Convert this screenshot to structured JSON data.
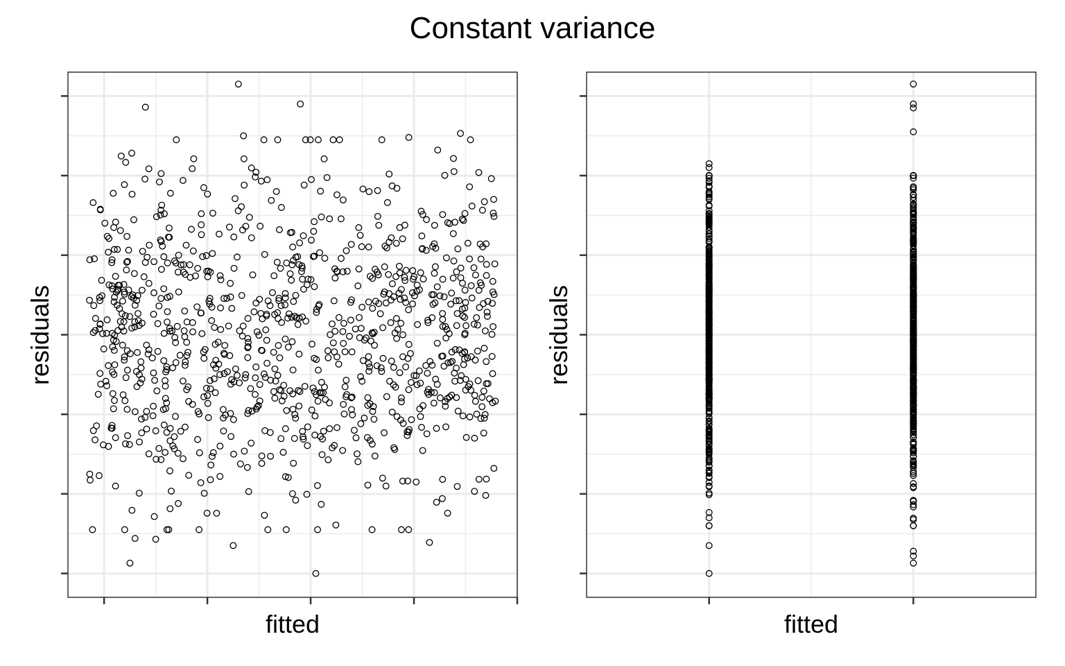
{
  "chart_data": {
    "title": "Constant variance",
    "colors": {
      "point_stroke": "#000000",
      "grid": "#EBEBEB",
      "panel_border": "#333333",
      "background": "#FFFFFF"
    },
    "panels": [
      {
        "type": "scatter",
        "xlabel": "fitted",
        "ylabel": "residuals",
        "tick_labels_shown": false,
        "grid": true,
        "seed": 20240611,
        "n_points": 1000,
        "x_distribution": {
          "kind": "uniform",
          "min": -0.15,
          "max": 3.8
        },
        "y_distribution": {
          "kind": "normal",
          "mean": 0,
          "sd": 1
        },
        "xlim": [
          -0.35,
          4.0
        ],
        "ylim": [
          -3.3,
          3.3
        ],
        "x_major_breaks": [
          0,
          1,
          2,
          3,
          4
        ],
        "y_major_breaks": [
          -3,
          -2,
          -1,
          0,
          1,
          2,
          3
        ],
        "y_extreme_points": [
          {
            "x": 1.3,
            "y": 3.15
          },
          {
            "x": 0.4,
            "y": 2.86
          },
          {
            "x": 1.9,
            "y": 2.9
          },
          {
            "x": 1.35,
            "y": 2.5
          },
          {
            "x": 3.45,
            "y": 2.53
          },
          {
            "x": 2.95,
            "y": 2.48
          },
          {
            "x": 2.05,
            "y": -3.0
          },
          {
            "x": 0.25,
            "y": -2.87
          },
          {
            "x": 1.25,
            "y": -2.65
          },
          {
            "x": 0.3,
            "y": -2.56
          },
          {
            "x": 0.5,
            "y": -2.57
          },
          {
            "x": 3.15,
            "y": -2.61
          }
        ]
      },
      {
        "type": "scatter",
        "xlabel": "fitted",
        "ylabel": "residuals",
        "tick_labels_shown": false,
        "grid": true,
        "seed": 97531,
        "groups": [
          {
            "x": 0,
            "n": 500,
            "y_distribution": {
              "kind": "normal",
              "mean": 0,
              "sd": 0.95
            },
            "extremes": [
              2.15,
              2.1,
              -3.0,
              -2.65
            ]
          },
          {
            "x": 1,
            "n": 500,
            "y_distribution": {
              "kind": "normal",
              "mean": 0,
              "sd": 1.0
            },
            "extremes": [
              3.15,
              2.9,
              2.85,
              2.55,
              -2.87,
              -2.78,
              -2.72
            ]
          }
        ],
        "xlim": [
          -0.6,
          1.6
        ],
        "ylim": [
          -3.3,
          3.3
        ],
        "x_major_breaks": [
          0,
          1
        ],
        "y_major_breaks": [
          -3,
          -2,
          -1,
          0,
          1,
          2,
          3
        ]
      }
    ]
  }
}
